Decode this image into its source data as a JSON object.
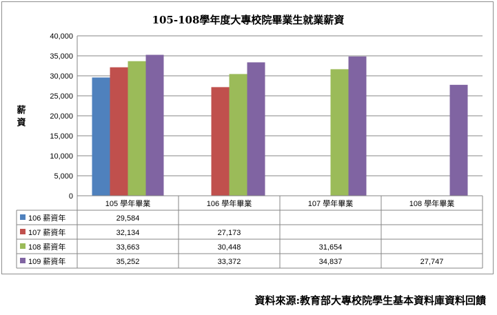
{
  "chart_data": {
    "type": "bar",
    "title": "105-108學年度大專校院畢業生就業薪資",
    "ylabel": "薪資",
    "xlabel": "",
    "ylim": [
      0,
      40000
    ],
    "yticks": [
      "0",
      "5,000",
      "10,000",
      "15,000",
      "20,000",
      "25,000",
      "30,000",
      "35,000",
      "40,000"
    ],
    "grid": true,
    "legend": "data-table",
    "categories": [
      "105  學年畢業",
      "106  學年畢業",
      "107  學年畢業",
      "108  學年畢業"
    ],
    "series": [
      {
        "name": "106  薪資年",
        "color": "#4f81bd",
        "values": [
          29584,
          null,
          null,
          null
        ],
        "labels": [
          "29,584",
          "",
          "",
          ""
        ]
      },
      {
        "name": "107  薪資年",
        "color": "#c0504d",
        "values": [
          32134,
          27173,
          null,
          null
        ],
        "labels": [
          "32,134",
          "27,173",
          "",
          ""
        ]
      },
      {
        "name": "108  薪資年",
        "color": "#9bbb59",
        "values": [
          33663,
          30448,
          31654,
          null
        ],
        "labels": [
          "33,663",
          "30,448",
          "31,654",
          ""
        ]
      },
      {
        "name": "109  薪資年",
        "color": "#8064a2",
        "values": [
          35252,
          33372,
          34837,
          27747
        ],
        "labels": [
          "35,252",
          "33,372",
          "34,837",
          "27,747"
        ]
      }
    ]
  },
  "footer": {
    "source": "資料來源:教育部大專校院學生基本資料庫資料回饋"
  }
}
